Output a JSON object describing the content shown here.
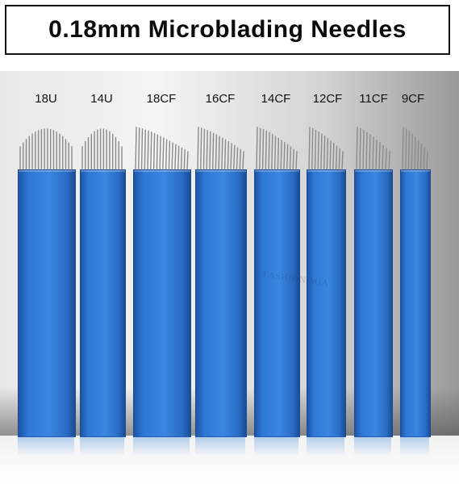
{
  "title": "0.18mm Microblading Needles",
  "watermark": "FASHION MIA",
  "needles": [
    {
      "label": "18U",
      "pins": 18,
      "shape": "U"
    },
    {
      "label": "14U",
      "pins": 14,
      "shape": "U"
    },
    {
      "label": "18CF",
      "pins": 18,
      "shape": "CF"
    },
    {
      "label": "16CF",
      "pins": 16,
      "shape": "CF"
    },
    {
      "label": "14CF",
      "pins": 14,
      "shape": "CF"
    },
    {
      "label": "12CF",
      "pins": 12,
      "shape": "CF"
    },
    {
      "label": "11CF",
      "pins": 11,
      "shape": "CF"
    },
    {
      "label": "9CF",
      "pins": 9,
      "shape": "CF"
    }
  ],
  "colors": {
    "blade": "#3a86e0",
    "pin": "#8a8a8a"
  }
}
